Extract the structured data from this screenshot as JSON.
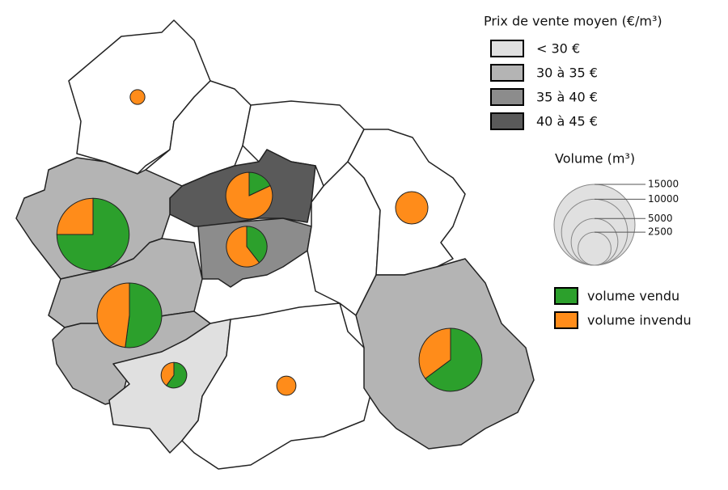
{
  "legend_price": {
    "title": "Prix de vente moyen (€/m³)",
    "classes": [
      {
        "label": "< 30 €",
        "color": "#e0e0e0"
      },
      {
        "label": "30 à 35 €",
        "color": "#b4b4b4"
      },
      {
        "label": "35 à 40 €",
        "color": "#8c8c8c"
      },
      {
        "label": "40 à 45 €",
        "color": "#5a5a5a"
      }
    ]
  },
  "legend_volume": {
    "title": "Volume (m³)",
    "sizes": [
      15000,
      10000,
      5000,
      2500
    ]
  },
  "legend_pie": {
    "sold": {
      "label": "volume vendu",
      "color": "#2ca02c"
    },
    "unsold": {
      "label": "volume invendu",
      "color": "#ff8c1a"
    }
  },
  "regions": [
    {
      "price_class": null,
      "sold": 0,
      "unsold": 500
    },
    {
      "price_class": null
    },
    {
      "price_class": null
    },
    {
      "price_class": 3,
      "sold": 900,
      "unsold": 4100
    },
    {
      "price_class": 2,
      "sold": 1500,
      "unsold": 2300
    },
    {
      "price_class": 1,
      "sold": 9000,
      "unsold": 3000
    },
    {
      "price_class": 1,
      "sold": 5000,
      "unsold": 4600
    },
    {
      "price_class": 1
    },
    {
      "price_class": 0,
      "sold": 900,
      "unsold": 600
    },
    {
      "price_class": null,
      "sold": 0,
      "unsold": 850
    },
    {
      "price_class": null
    },
    {
      "price_class": null,
      "sold": 0,
      "unsold": 2400
    },
    {
      "price_class": 1,
      "sold": 5900,
      "unsold": 3200
    }
  ]
}
